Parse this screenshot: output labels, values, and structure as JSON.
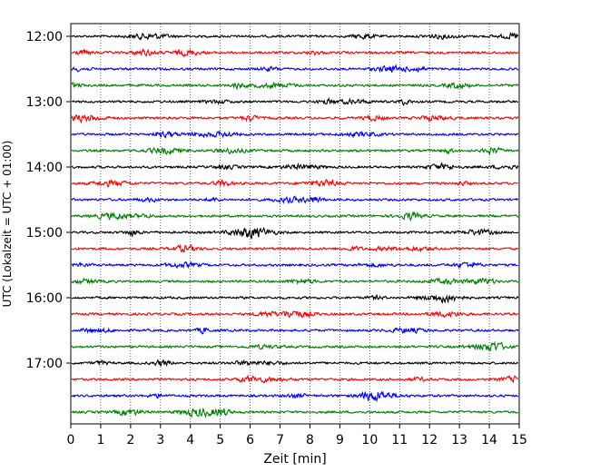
{
  "chart_data": {
    "type": "line",
    "xlabel": "Zeit  [min]",
    "ylabel": "UTC (Lokalzeit = UTC + 01:00)",
    "xlim": [
      0,
      15
    ],
    "x_ticks": [
      0,
      1,
      2,
      3,
      4,
      5,
      6,
      7,
      8,
      9,
      10,
      11,
      12,
      13,
      14,
      15
    ],
    "y_ticks": [
      {
        "label": "12:00",
        "row": 0
      },
      {
        "label": "13:00",
        "row": 4
      },
      {
        "label": "14:00",
        "row": 8
      },
      {
        "label": "15:00",
        "row": 12
      },
      {
        "label": "16:00",
        "row": 16
      },
      {
        "label": "17:00",
        "row": 20
      }
    ],
    "row_interval_minutes": 15,
    "row_count": 24,
    "row_colors": [
      "#000000",
      "#ff0000",
      "#0000ff",
      "#008000"
    ],
    "grid": "vertical-dotted"
  }
}
